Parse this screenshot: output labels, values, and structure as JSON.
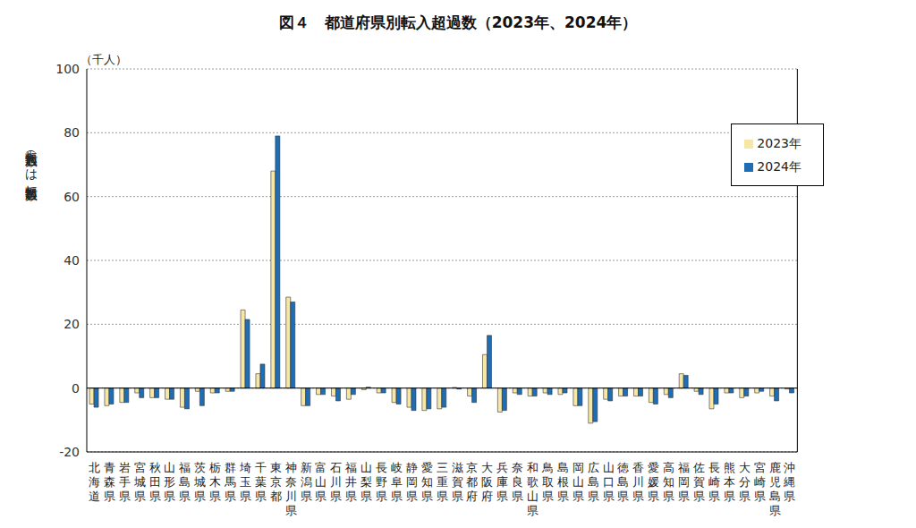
{
  "chart_data": {
    "type": "bar",
    "title": "図４　都道府県別転入超過数（2023年、2024年）",
    "y_label": "転入超過数（－は転出超過数）",
    "y_unit": "（千人）",
    "categories": [
      "北海道",
      "青森県",
      "岩手県",
      "宮城県",
      "秋田県",
      "山形県",
      "福島県",
      "茨城県",
      "栃木県",
      "群馬県",
      "埼玉県",
      "千葉県",
      "東京都",
      "神奈川県",
      "新潟県",
      "富山県",
      "石川県",
      "福井県",
      "山梨県",
      "長野県",
      "岐阜県",
      "静岡県",
      "愛知県",
      "三重県",
      "滋賀県",
      "京都府",
      "大阪府",
      "兵庫県",
      "奈良県",
      "和歌山県",
      "鳥取県",
      "島根県",
      "岡山県",
      "広島県",
      "山口県",
      "徳島県",
      "香川県",
      "愛媛県",
      "高知県",
      "福岡県",
      "佐賀県",
      "長崎県",
      "熊本県",
      "大分県",
      "宮崎県",
      "鹿児島県",
      "沖縄県"
    ],
    "series": [
      {
        "name": "2023年",
        "color": "#f7e7a6",
        "values": [
          -5,
          -5.5,
          -4.5,
          -1.5,
          -3,
          -3.5,
          -6,
          -1,
          -1.5,
          -1,
          24.5,
          4.5,
          68,
          28.5,
          -5.5,
          -2,
          -2.5,
          -3.5,
          -0.5,
          -1.5,
          -4.5,
          -6,
          -7,
          -6.5,
          0.2,
          -2.5,
          10.5,
          -7.5,
          -1.5,
          -2.5,
          -1.5,
          -2,
          -5.5,
          -11,
          -3.5,
          -2.5,
          -2.5,
          -4.5,
          -2,
          4.5,
          -1,
          -6.5,
          -1.5,
          -3,
          -1.5,
          -2.5,
          -0.3
        ]
      },
      {
        "name": "2024年",
        "color": "#1f6db3",
        "values": [
          -6,
          -5,
          -4.5,
          -3,
          -3,
          -3.5,
          -6.5,
          -5.5,
          -1.5,
          -1,
          21.5,
          7.5,
          79,
          27,
          -5.5,
          -2,
          -4,
          -2,
          0.3,
          -1.5,
          -5,
          -7,
          -6.5,
          -6,
          -0.3,
          -4.5,
          16.5,
          -7,
          -2,
          -2.5,
          -2,
          -1.5,
          -5.5,
          -10.5,
          -4,
          -2.5,
          -2.5,
          -5,
          -3,
          4,
          -2,
          -5,
          -1.5,
          -2.5,
          -1,
          -4,
          -1.5
        ]
      }
    ],
    "ylim": [
      -20,
      100
    ],
    "yticks": [
      -20,
      0,
      20,
      40,
      60,
      80,
      100
    ],
    "grid": true,
    "legend": "upper right"
  }
}
